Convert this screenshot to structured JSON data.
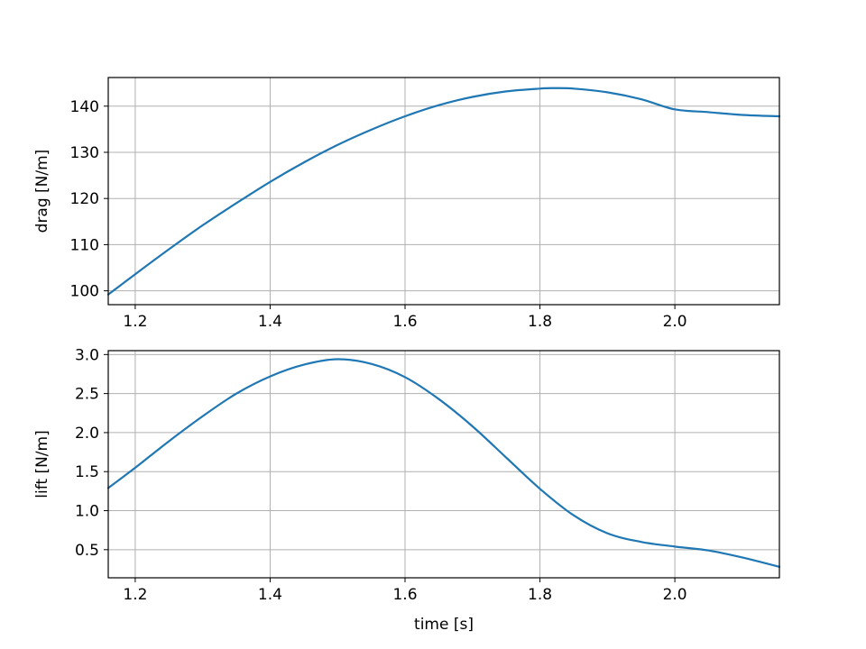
{
  "chart_data": [
    {
      "type": "line",
      "xlabel": "",
      "ylabel": "drag [N/m]",
      "xlim": [
        1.16,
        2.155
      ],
      "ylim": [
        97,
        146.2
      ],
      "xticks": [
        1.2,
        1.4,
        1.6,
        1.8,
        2.0
      ],
      "xtick_labels": [
        "1.2",
        "1.4",
        "1.6",
        "1.8",
        "2.0"
      ],
      "yticks": [
        100,
        110,
        120,
        130,
        140
      ],
      "ytick_labels": [
        "100",
        "110",
        "120",
        "130",
        "140"
      ],
      "grid": true,
      "series": [
        {
          "color": "#1f77b4",
          "x": [
            1.16,
            1.2,
            1.25,
            1.3,
            1.35,
            1.4,
            1.45,
            1.5,
            1.55,
            1.6,
            1.65,
            1.7,
            1.75,
            1.8,
            1.82,
            1.85,
            1.9,
            1.95,
            2.0,
            2.05,
            2.1,
            2.155
          ],
          "y": [
            99.2,
            103.6,
            109.0,
            114.2,
            119.0,
            123.6,
            127.8,
            131.6,
            134.9,
            137.8,
            140.2,
            142.0,
            143.2,
            143.8,
            143.9,
            143.8,
            143.0,
            141.5,
            139.3,
            138.7,
            138.1,
            137.8
          ]
        }
      ]
    },
    {
      "type": "line",
      "xlabel": "time [s]",
      "ylabel": "lift [N/m]",
      "xlim": [
        1.16,
        2.155
      ],
      "ylim": [
        0.14,
        3.05
      ],
      "xticks": [
        1.2,
        1.4,
        1.6,
        1.8,
        2.0
      ],
      "xtick_labels": [
        "1.2",
        "1.4",
        "1.6",
        "1.8",
        "2.0"
      ],
      "yticks": [
        0.5,
        1.0,
        1.5,
        2.0,
        2.5,
        3.0
      ],
      "ytick_labels": [
        "0.5",
        "1.0",
        "1.5",
        "2.0",
        "2.5",
        "3.0"
      ],
      "grid": true,
      "series": [
        {
          "color": "#1f77b4",
          "x": [
            1.16,
            1.2,
            1.25,
            1.3,
            1.35,
            1.4,
            1.45,
            1.5,
            1.55,
            1.6,
            1.65,
            1.7,
            1.75,
            1.8,
            1.85,
            1.9,
            1.95,
            2.0,
            2.05,
            2.1,
            2.155
          ],
          "y": [
            1.29,
            1.55,
            1.89,
            2.21,
            2.5,
            2.72,
            2.87,
            2.94,
            2.88,
            2.71,
            2.43,
            2.08,
            1.68,
            1.28,
            0.94,
            0.71,
            0.6,
            0.54,
            0.49,
            0.4,
            0.28
          ]
        }
      ]
    }
  ]
}
